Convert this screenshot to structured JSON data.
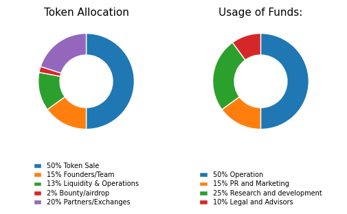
{
  "chart_data": [
    {
      "type": "donut",
      "title": "Token Allocation",
      "categories": [
        "50% Token Sale",
        "15% Founders/Team",
        "13% Liquidity & Operations",
        "2% Bounty/airdrop",
        "20% Partners/Exchanges"
      ],
      "values": [
        50,
        15,
        13,
        2,
        20
      ],
      "legend": "lower center"
    },
    {
      "type": "donut",
      "title": "Usage of Funds:",
      "categories": [
        "50% Operation",
        "15% PR and Marketing",
        "25% Research and development",
        "10% Legal and Advisors"
      ],
      "values": [
        50,
        15,
        25,
        10
      ],
      "legend": "lower center"
    }
  ]
}
